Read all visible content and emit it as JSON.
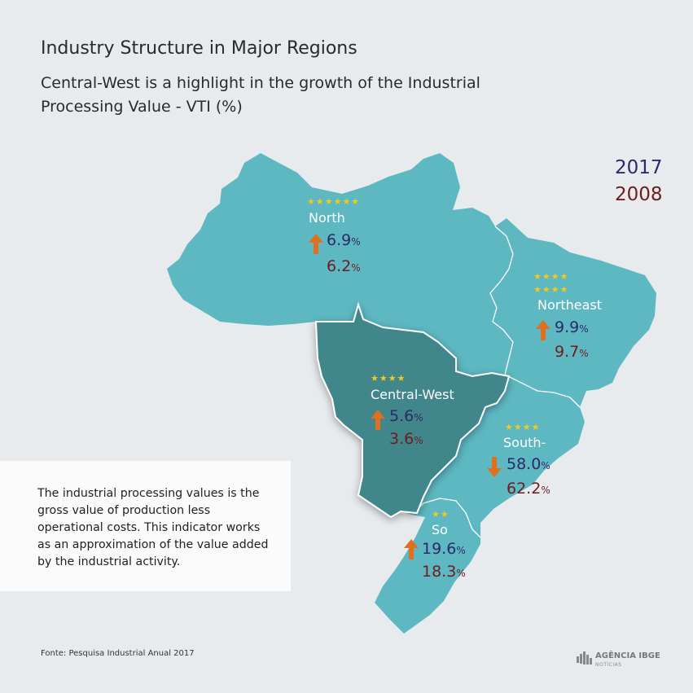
{
  "header": {
    "title": "Industry Structure in Major Regions",
    "subtitle": "Central-West is a highlight  in the growth of the Industrial Processing Value - VTI (%)"
  },
  "legend": {
    "year_2017": "2017",
    "year_2008": "2008",
    "colors": {
      "2017": "#2d2a67",
      "2008": "#6e1d1f"
    }
  },
  "regions": {
    "north": {
      "name": "North",
      "stars": "★★★★★★",
      "v2017": "6.9",
      "v2008": "6.2",
      "unit": "%",
      "trend": "up"
    },
    "northeast": {
      "name": "Northeast",
      "stars_row1": "★★★★",
      "stars_row2": "★★★★",
      "v2017": "9.9",
      "v2008": "9.7",
      "unit": "%",
      "trend": "up"
    },
    "central_west": {
      "name": "Central-West",
      "stars": "★★★★",
      "v2017": "5.6",
      "v2008": "3.6",
      "unit": "%",
      "trend": "up"
    },
    "southeast": {
      "name": "South-",
      "stars": "★★★★",
      "v2017": "58.0",
      "v2008": "62.2",
      "unit": "%",
      "trend": "down"
    },
    "south": {
      "name": "So",
      "stars": "★★",
      "v2017": "19.6",
      "v2008": "18.3",
      "unit": "%",
      "trend": "up"
    }
  },
  "map_colors": {
    "land": "#5db8c2",
    "central_west": "#3f868b",
    "border": "#ffffff",
    "arrow": "#e06f1f",
    "star": "#f2c91e"
  },
  "note": "The industrial processing values is the gross value of production less operational costs. This indicator works as an approximation of the value added by the industrial activity.",
  "source": "Fonte: Pesquisa Industrial Anual 2017",
  "logo": {
    "name": "AGÊNCIA IBGE",
    "sub": "NOTÍCIAS"
  }
}
